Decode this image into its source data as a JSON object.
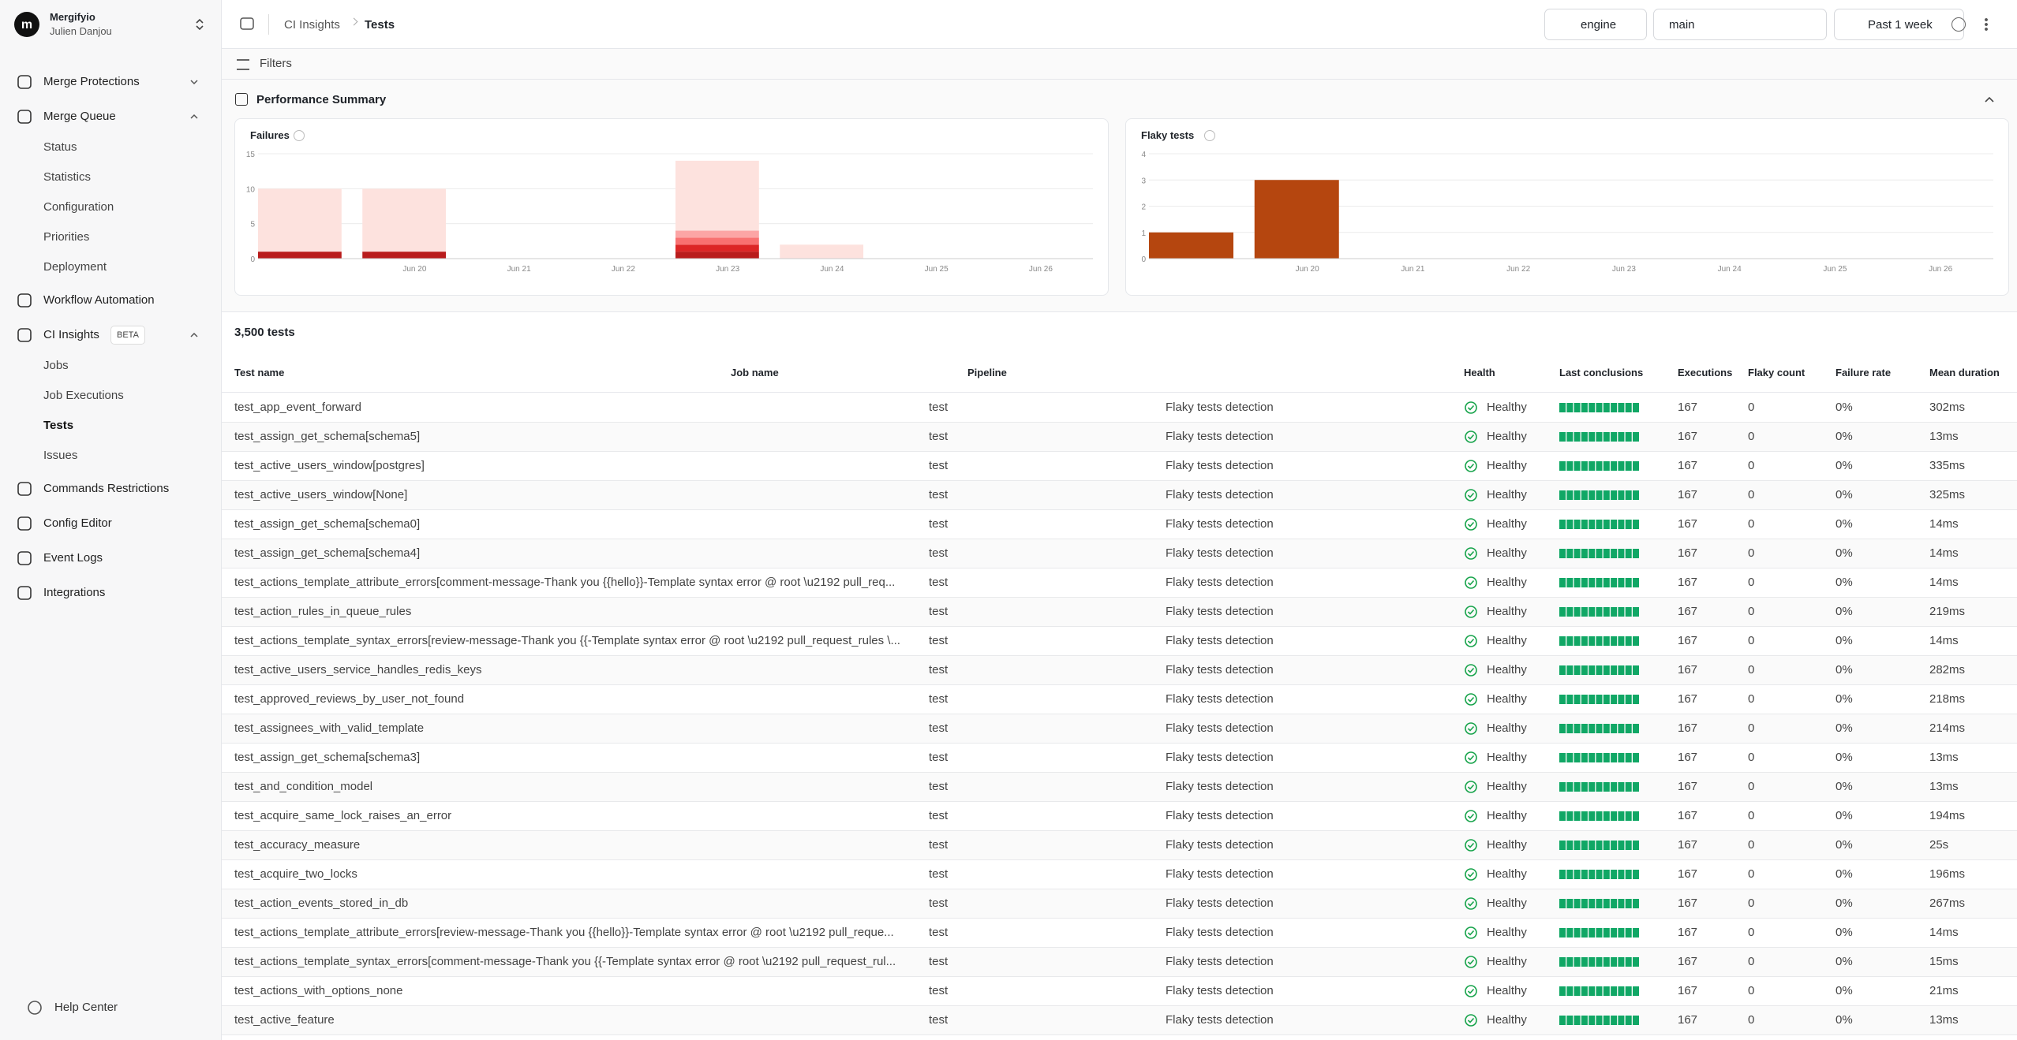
{
  "sidebar": {
    "org": "Mergifyio",
    "user": "Julien Danjou",
    "nav": [
      {
        "label": "Merge Protections"
      },
      {
        "label": "Merge Queue",
        "children": [
          "Status",
          "Statistics",
          "Configuration",
          "Priorities",
          "Deployment"
        ]
      },
      {
        "label": "Workflow Automation"
      },
      {
        "label": "CI Insights",
        "badge": "BETA",
        "children": [
          "Jobs",
          "Job Executions",
          "Tests",
          "Issues"
        ]
      },
      {
        "label": "Commands Restrictions"
      },
      {
        "label": "Config Editor"
      },
      {
        "label": "Event Logs"
      },
      {
        "label": "Integrations"
      }
    ],
    "help": "Help Center"
  },
  "topbar": {
    "breadcrumb": [
      "CI Insights",
      "Tests"
    ],
    "repository": "engine",
    "branch": "main",
    "period": "Past 1 week"
  },
  "filters": "Filters",
  "summary": {
    "title": "Performance Summary",
    "charts": [
      {
        "type": "bar",
        "title": "Failures",
        "categories": [
          null,
          "Jun 20",
          "Jun 21",
          "Jun 22",
          "Jun 23",
          "Jun 24",
          "Jun 25",
          "Jun 26"
        ],
        "ylim": [
          0,
          15
        ],
        "yticks": [
          0,
          5,
          10,
          15
        ],
        "grid": true,
        "series": [
          {
            "color": "#b91c1c",
            "values": [
              1,
              1,
              0,
              0,
              1,
              0,
              0,
              0
            ]
          },
          {
            "color": "#dc2626",
            "values": [
              0,
              0,
              0,
              0,
              1,
              0,
              0,
              0
            ]
          },
          {
            "color": "#f87171",
            "values": [
              0,
              0,
              0,
              0,
              1,
              0,
              0,
              0
            ]
          },
          {
            "color": "#fca5a5",
            "values": [
              0,
              0,
              0,
              0,
              1,
              0,
              0,
              0
            ]
          },
          {
            "color": "#fde2de",
            "values": [
              9,
              9,
              0,
              0,
              10,
              2,
              0,
              0
            ]
          }
        ]
      },
      {
        "type": "bar",
        "title": "Flaky tests",
        "categories": [
          null,
          "Jun 20",
          "Jun 21",
          "Jun 22",
          "Jun 23",
          "Jun 24",
          "Jun 25",
          "Jun 26"
        ],
        "ylim": [
          0,
          4
        ],
        "yticks": [
          0,
          1,
          2,
          3,
          4
        ],
        "grid": true,
        "series": [
          {
            "color": "#b5460f",
            "values": [
              1,
              3,
              0,
              0,
              0,
              0,
              0,
              0
            ]
          }
        ]
      }
    ]
  },
  "table": {
    "count": "3,500 tests",
    "columns": [
      "Test name",
      "Job name",
      "Pipeline",
      "Health",
      "Last conclusions",
      "Executions",
      "Flaky count",
      "Failure rate",
      "Mean duration"
    ],
    "rows": [
      [
        "test_app_event_forward",
        "test",
        "Flaky tests detection",
        "Healthy",
        167,
        0,
        "0%",
        "302ms"
      ],
      [
        "test_assign_get_schema[schema5]",
        "test",
        "Flaky tests detection",
        "Healthy",
        167,
        0,
        "0%",
        "13ms"
      ],
      [
        "test_active_users_window[postgres]",
        "test",
        "Flaky tests detection",
        "Healthy",
        167,
        0,
        "0%",
        "335ms"
      ],
      [
        "test_active_users_window[None]",
        "test",
        "Flaky tests detection",
        "Healthy",
        167,
        0,
        "0%",
        "325ms"
      ],
      [
        "test_assign_get_schema[schema0]",
        "test",
        "Flaky tests detection",
        "Healthy",
        167,
        0,
        "0%",
        "14ms"
      ],
      [
        "test_assign_get_schema[schema4]",
        "test",
        "Flaky tests detection",
        "Healthy",
        167,
        0,
        "0%",
        "14ms"
      ],
      [
        "test_actions_template_attribute_errors[comment-message-Thank you {{hello}}-Template syntax error @ root \\u2192 pull_req...",
        "test",
        "Flaky tests detection",
        "Healthy",
        167,
        0,
        "0%",
        "14ms"
      ],
      [
        "test_action_rules_in_queue_rules",
        "test",
        "Flaky tests detection",
        "Healthy",
        167,
        0,
        "0%",
        "219ms"
      ],
      [
        "test_actions_template_syntax_errors[review-message-Thank you {{-Template syntax error @ root \\u2192 pull_request_rules \\...",
        "test",
        "Flaky tests detection",
        "Healthy",
        167,
        0,
        "0%",
        "14ms"
      ],
      [
        "test_active_users_service_handles_redis_keys",
        "test",
        "Flaky tests detection",
        "Healthy",
        167,
        0,
        "0%",
        "282ms"
      ],
      [
        "test_approved_reviews_by_user_not_found",
        "test",
        "Flaky tests detection",
        "Healthy",
        167,
        0,
        "0%",
        "218ms"
      ],
      [
        "test_assignees_with_valid_template",
        "test",
        "Flaky tests detection",
        "Healthy",
        167,
        0,
        "0%",
        "214ms"
      ],
      [
        "test_assign_get_schema[schema3]",
        "test",
        "Flaky tests detection",
        "Healthy",
        167,
        0,
        "0%",
        "13ms"
      ],
      [
        "test_and_condition_model",
        "test",
        "Flaky tests detection",
        "Healthy",
        167,
        0,
        "0%",
        "13ms"
      ],
      [
        "test_acquire_same_lock_raises_an_error",
        "test",
        "Flaky tests detection",
        "Healthy",
        167,
        0,
        "0%",
        "194ms"
      ],
      [
        "test_accuracy_measure",
        "test",
        "Flaky tests detection",
        "Healthy",
        167,
        0,
        "0%",
        "25s"
      ],
      [
        "test_acquire_two_locks",
        "test",
        "Flaky tests detection",
        "Healthy",
        167,
        0,
        "0%",
        "196ms"
      ],
      [
        "test_action_events_stored_in_db",
        "test",
        "Flaky tests detection",
        "Healthy",
        167,
        0,
        "0%",
        "267ms"
      ],
      [
        "test_actions_template_attribute_errors[review-message-Thank you {{hello}}-Template syntax error @ root \\u2192 pull_reque...",
        "test",
        "Flaky tests detection",
        "Healthy",
        167,
        0,
        "0%",
        "14ms"
      ],
      [
        "test_actions_template_syntax_errors[comment-message-Thank you {{-Template syntax error @ root \\u2192 pull_request_rul...",
        "test",
        "Flaky tests detection",
        "Healthy",
        167,
        0,
        "0%",
        "15ms"
      ],
      [
        "test_actions_with_options_none",
        "test",
        "Flaky tests detection",
        "Healthy",
        167,
        0,
        "0%",
        "21ms"
      ],
      [
        "test_active_feature",
        "test",
        "Flaky tests detection",
        "Healthy",
        167,
        0,
        "0%",
        "13ms"
      ]
    ]
  }
}
